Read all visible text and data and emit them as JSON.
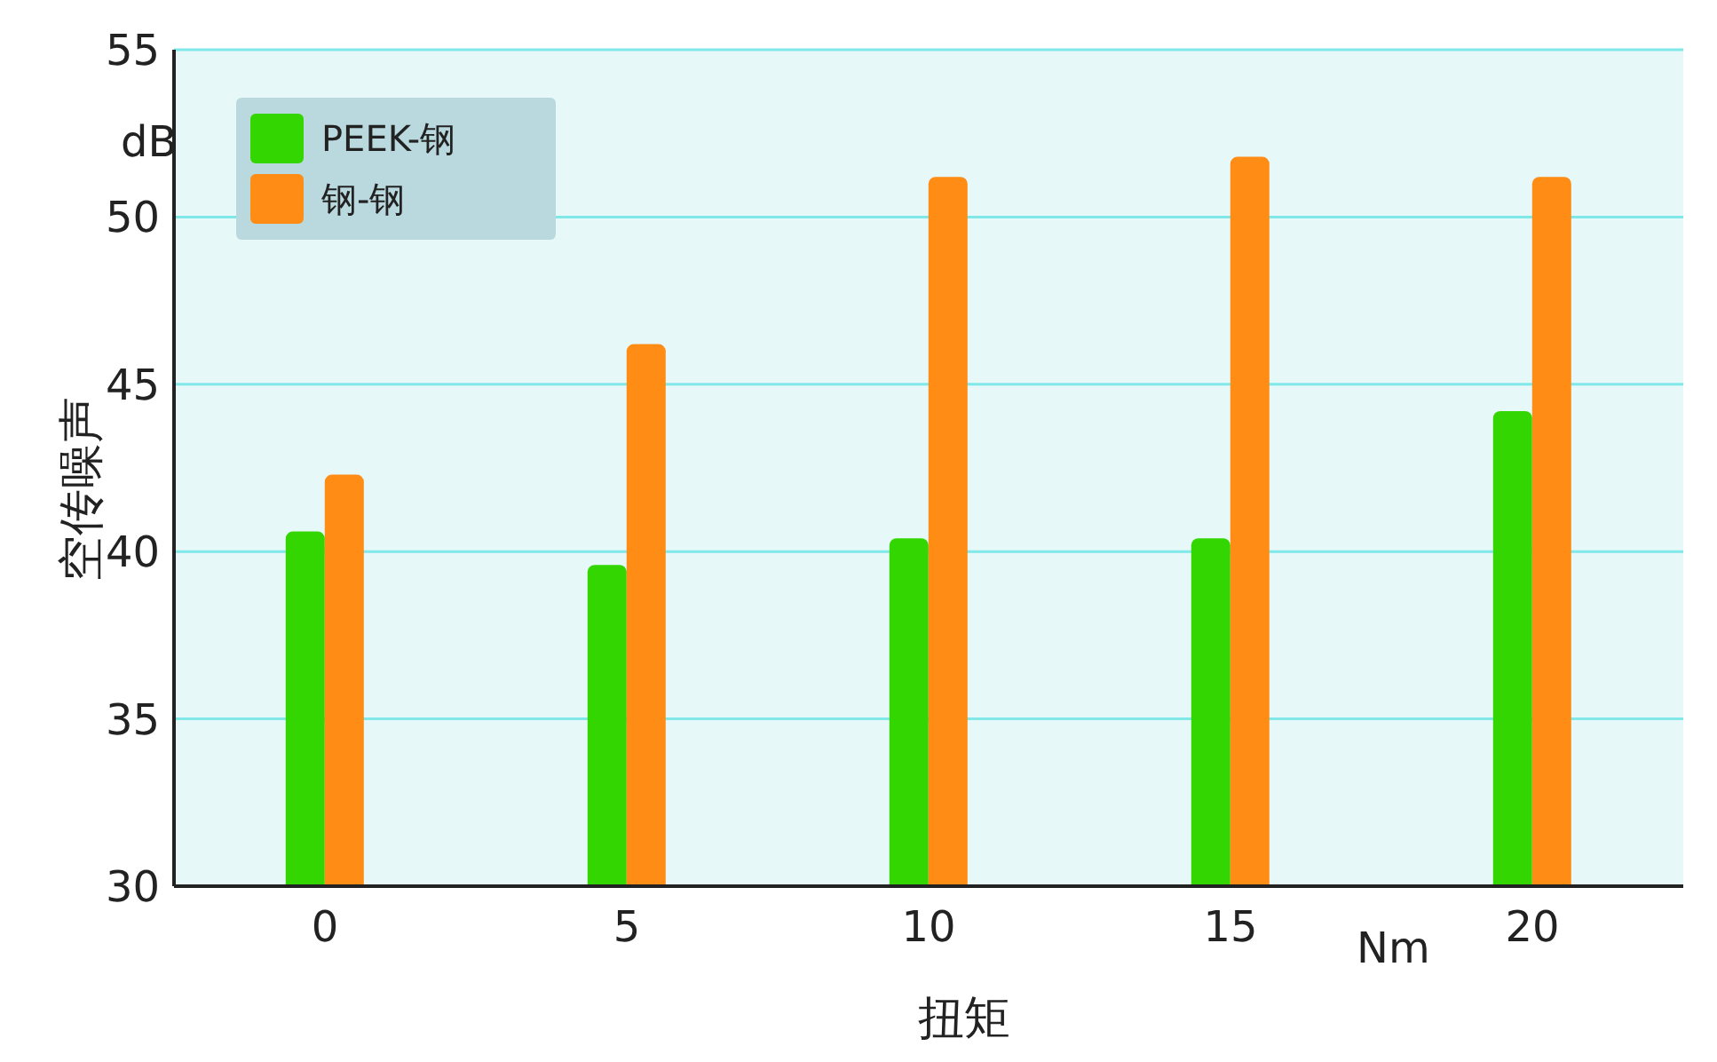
{
  "chart_data": {
    "type": "bar",
    "ylabel": "空传噪声",
    "xlabel": "扭矩",
    "annotations": [
      "dB",
      "Nm"
    ],
    "categories": [
      "0",
      "5",
      "10",
      "15",
      "20"
    ],
    "series": [
      {
        "name": "PEEK-钢",
        "color": "#33d600",
        "values": [
          40.6,
          39.6,
          40.4,
          40.4,
          44.2
        ]
      },
      {
        "name": "钢-钢",
        "color": "#ff8c14",
        "values": [
          42.3,
          46.2,
          51.2,
          51.8,
          51.2
        ]
      }
    ],
    "ylim": [
      30,
      55
    ],
    "yticks": [
      30,
      35,
      40,
      45,
      50,
      55
    ],
    "grid": "y",
    "legend": "top left"
  }
}
